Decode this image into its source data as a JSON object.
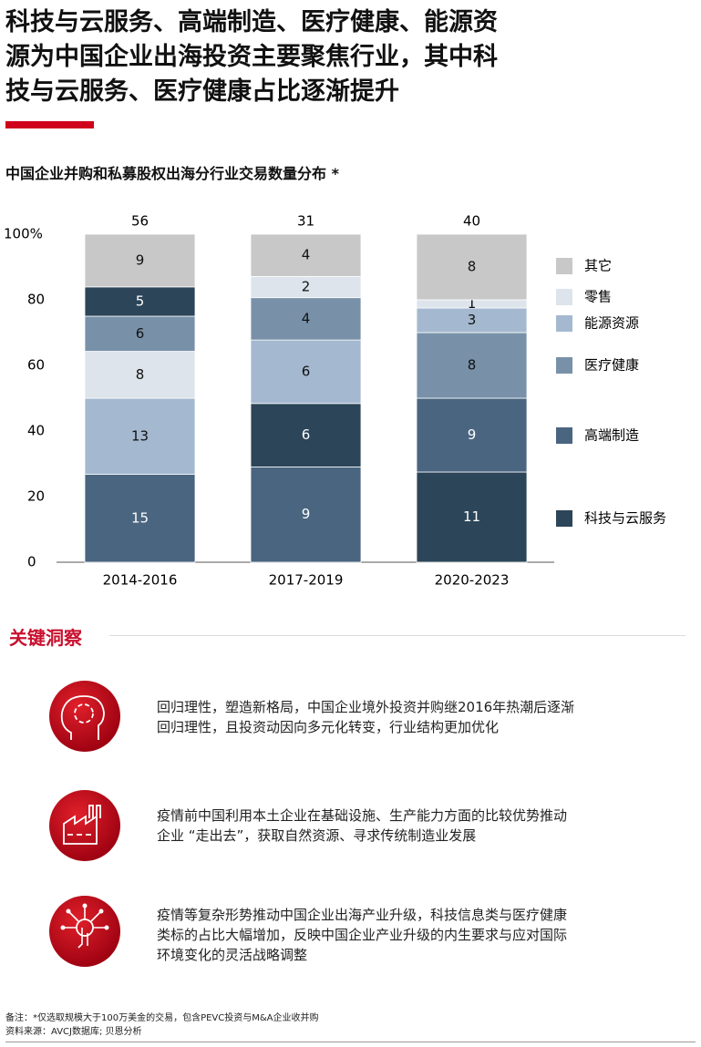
{
  "header": {
    "title_lines": [
      "科技与云服务、高端制造、医疗健康、能源资",
      "源为中国企业出海投资主要聚焦行业，其中科",
      "技与云服务、医疗健康占比逐渐提升"
    ]
  },
  "chart_data": {
    "type": "bar",
    "stacked": "percent",
    "title": "中国企业并购和私募股权出海分行业交易数量分布 *",
    "categories": [
      "2014-2016",
      "2017-2019",
      "2020-2023"
    ],
    "totals": [
      56,
      31,
      40
    ],
    "series": [
      {
        "name": "其它",
        "color": "#c8c8c8",
        "values": [
          9,
          4,
          8
        ]
      },
      {
        "name": "零售",
        "color": "#dde4eb",
        "values": [
          8,
          2,
          1
        ]
      },
      {
        "name": "能源资源",
        "color": "#a4b9d0",
        "values": [
          13,
          6,
          3
        ]
      },
      {
        "name": "医疗健康",
        "color": "#7891a9",
        "values": [
          6,
          4,
          8
        ]
      },
      {
        "name": "高端制造",
        "color": "#4a6580",
        "values": [
          15,
          9,
          9
        ]
      },
      {
        "name": "科技与云服务",
        "color": "#2c4558",
        "values": [
          5,
          6,
          11
        ]
      }
    ],
    "stack_order": [
      [
        "高端制造",
        "能源资源",
        "零售",
        "医疗健康",
        "科技与云服务",
        "其它"
      ],
      [
        "高端制造",
        "科技与云服务",
        "能源资源",
        "医疗健康",
        "零售",
        "其它"
      ],
      [
        "科技与云服务",
        "高端制造",
        "医疗健康",
        "能源资源",
        "零售",
        "其它"
      ]
    ],
    "ylim": [
      0,
      100
    ],
    "yticks": [
      0,
      20,
      40,
      60,
      80,
      {
        "value": 100,
        "label": "100%"
      }
    ],
    "grid": false,
    "legend": "right"
  },
  "insights": {
    "heading": "关键洞察",
    "items": [
      {
        "lines": [
          "回归理性，塑造新格局，中国企业境外投资并购继2016年热潮后逐渐",
          "回归理性，且投资动因向多元化转变，行业结构更加优化"
        ]
      },
      {
        "lines": [
          "疫情前中国利用本土企业在基础设施、生产能力方面的比较优势推动",
          "企业 “走出去”，获取自然资源、寻求传统制造业发展"
        ]
      },
      {
        "lines": [
          "疫情等复杂形势推动中国企业出海产业升级，科技信息类与医疗健康",
          "类标的占比大幅增加，反映中国企业产业升级的内生要求与应对国际",
          "环境变化的灵活战略调整"
        ]
      }
    ]
  },
  "footer": {
    "note": "备注：*仅选取规模大于100万美金的交易，包含PEVC投资与M&A企业收并购",
    "source": "资料来源：AVCJ数据库; 贝恩分析"
  }
}
